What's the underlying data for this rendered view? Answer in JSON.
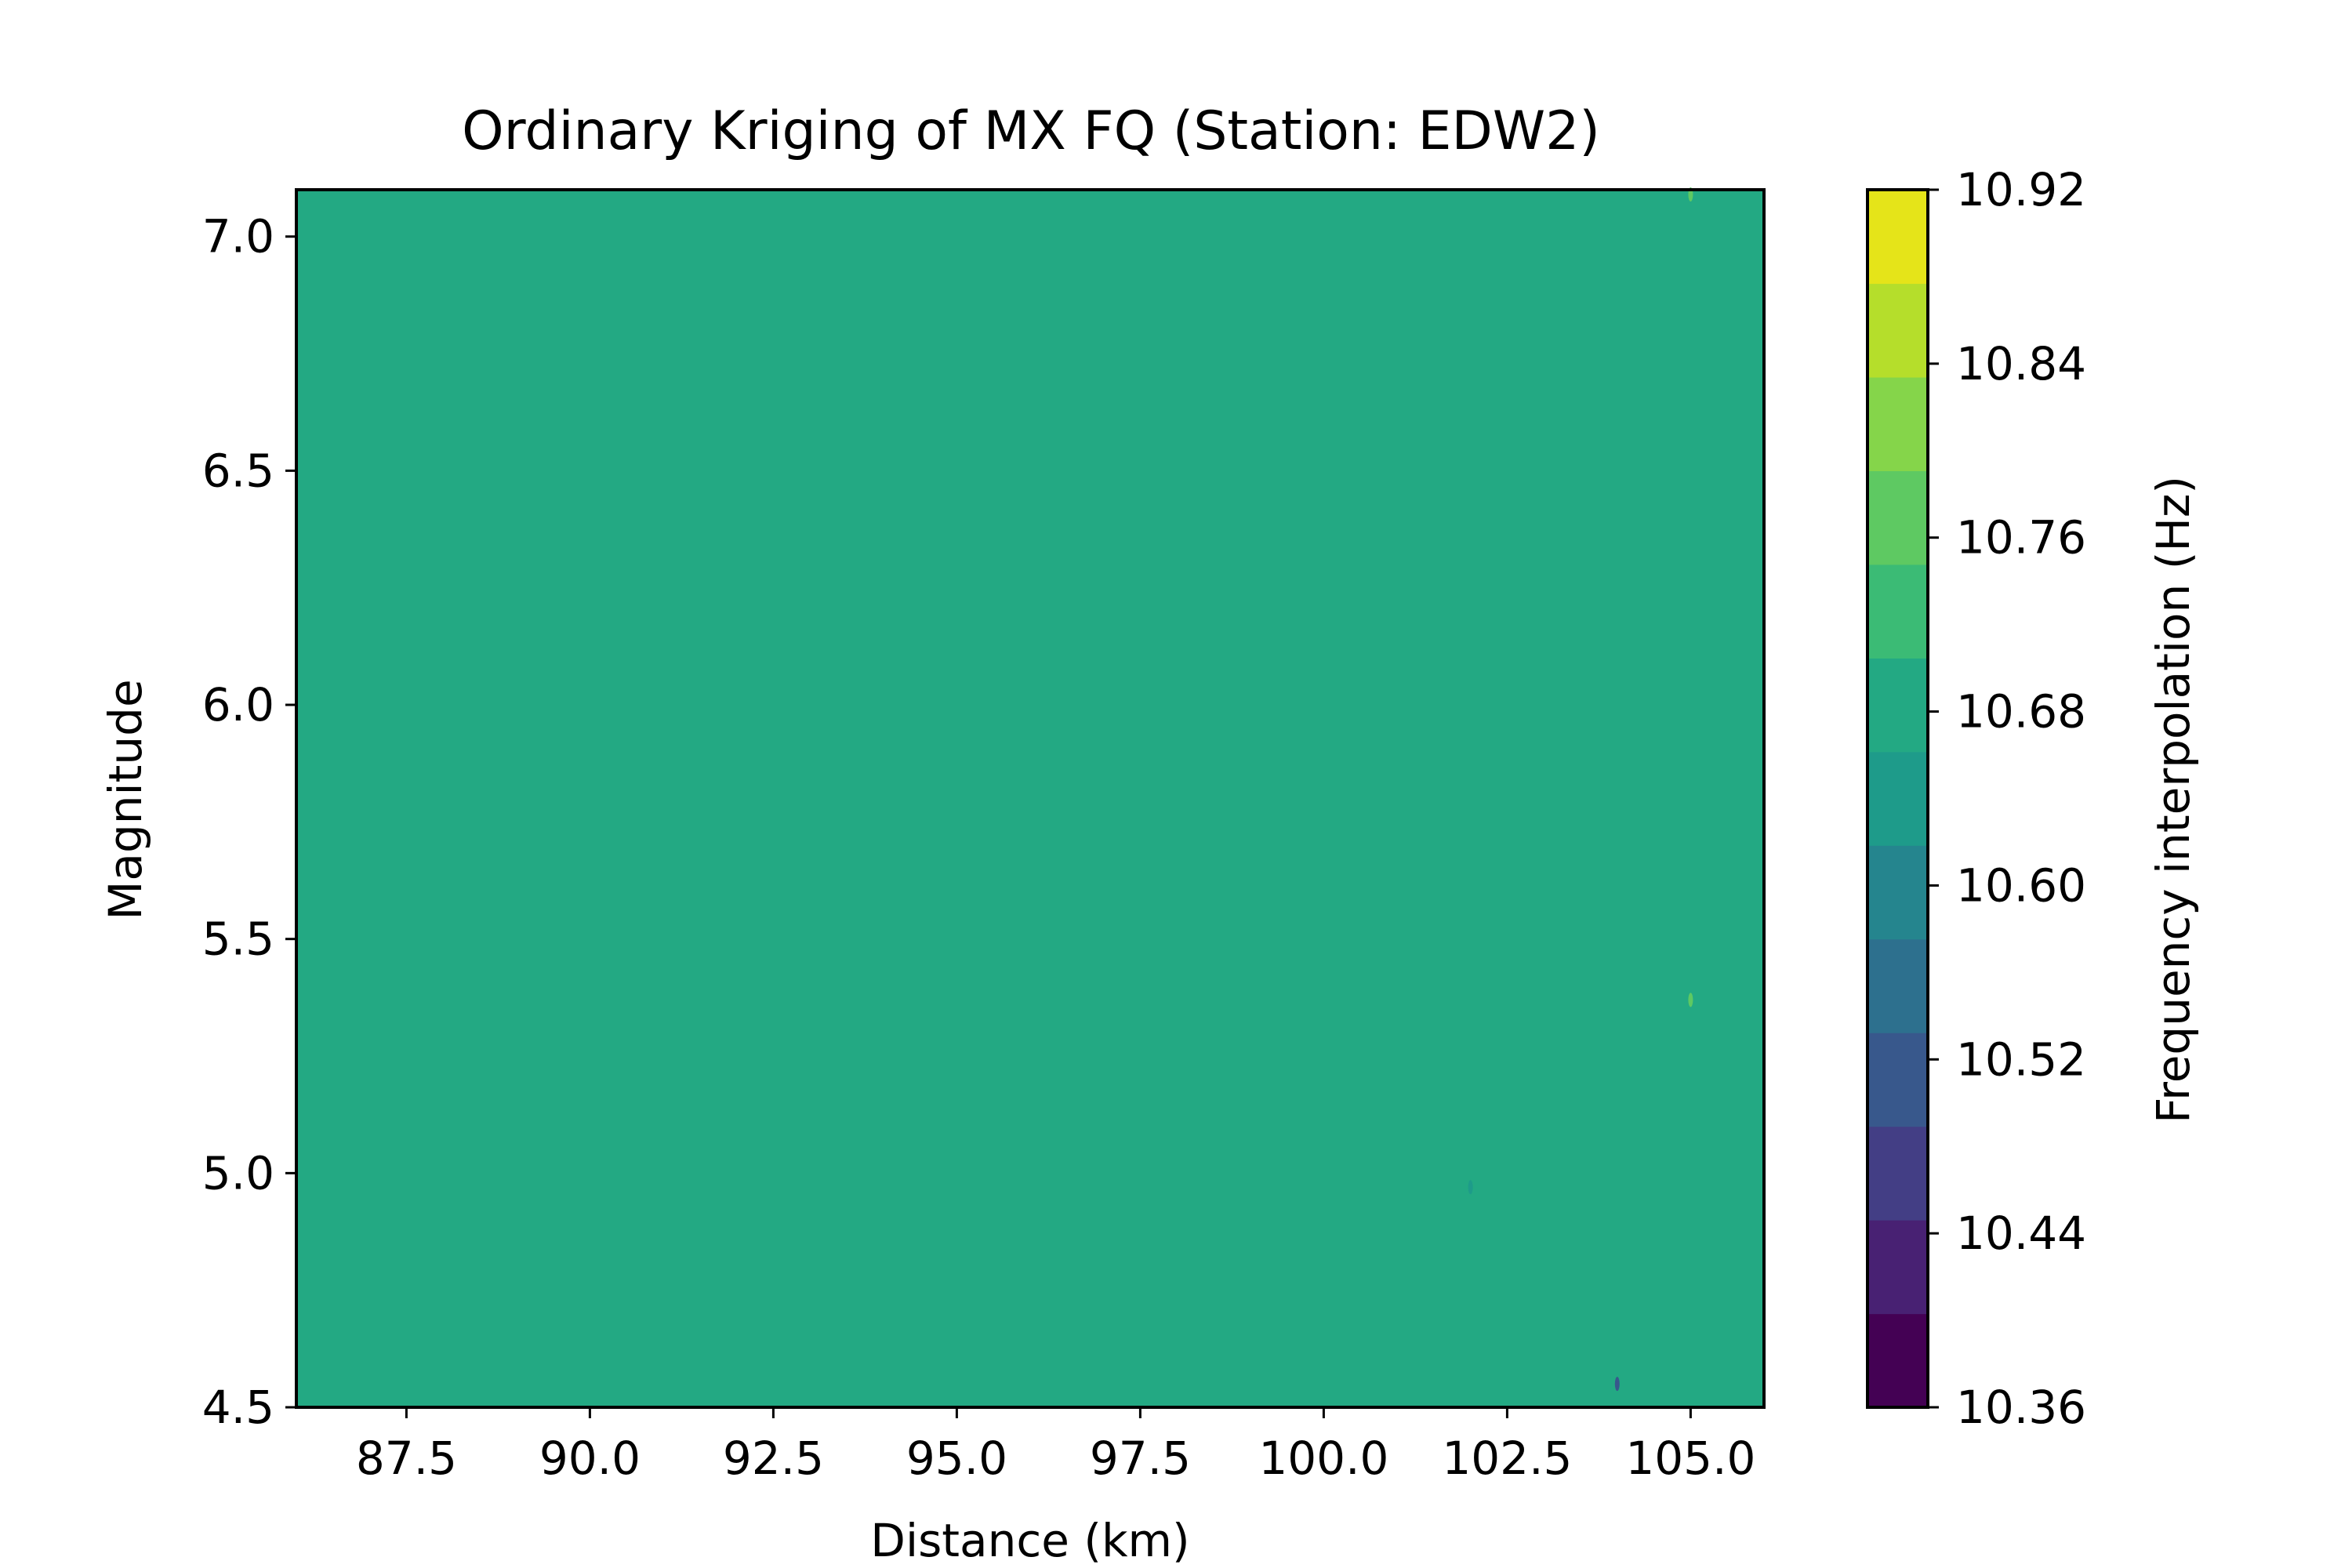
{
  "chart_data": {
    "type": "heatmap",
    "title": "Ordinary Kriging of MX FQ (Station: EDW2)",
    "xlabel": "Distance (km)",
    "ylabel": "Magnitude",
    "xlim": [
      86.0,
      106.0
    ],
    "ylim": [
      4.5,
      7.1
    ],
    "x_ticks": [
      87.5,
      90.0,
      92.5,
      95.0,
      97.5,
      100.0,
      102.5,
      105.0
    ],
    "x_tick_labels": [
      "87.5",
      "90.0",
      "92.5",
      "95.0",
      "97.5",
      "100.0",
      "102.5",
      "105.0"
    ],
    "y_ticks": [
      4.5,
      5.0,
      5.5,
      6.0,
      6.5,
      7.0
    ],
    "y_tick_labels": [
      "4.5",
      "5.0",
      "5.5",
      "6.0",
      "6.5",
      "7.0"
    ],
    "fill_value": 10.7,
    "fill_color": "#23a983",
    "grid": false,
    "colorbar": {
      "label": "Frequency interpolation (Hz)",
      "range": [
        10.36,
        10.92
      ],
      "tick_values": [
        10.36,
        10.44,
        10.52,
        10.6,
        10.68,
        10.76,
        10.84,
        10.92
      ],
      "tick_labels": [
        "10.36",
        "10.44",
        "10.52",
        "10.60",
        "10.68",
        "10.76",
        "10.84",
        "10.92"
      ],
      "level_colors": [
        "#440154",
        "#482173",
        "#433e85",
        "#38588c",
        "#2d708e",
        "#25858e",
        "#1e9b8a",
        "#23a983",
        "#3bbb75",
        "#5ec962",
        "#85d54a",
        "#b5de2b",
        "#e5e419"
      ]
    },
    "anomalies": [
      {
        "x": 105.0,
        "y": 7.09,
        "color": "#5ec962"
      },
      {
        "x": 105.0,
        "y": 5.37,
        "color": "#5ec962"
      },
      {
        "x": 102.0,
        "y": 4.97,
        "color": "#1e9b8a"
      },
      {
        "x": 104.0,
        "y": 4.55,
        "color": "#38588c"
      }
    ]
  }
}
